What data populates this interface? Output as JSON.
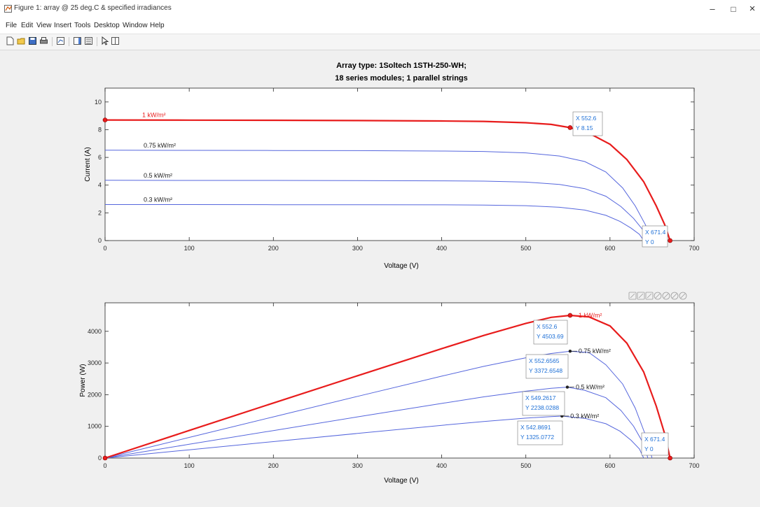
{
  "window": {
    "title": "Figure 1: array @ 25 deg.C & specified irradiances",
    "minimize_symbol": "–",
    "maximize_symbol": "□",
    "close_symbol": "×"
  },
  "menu": [
    "File",
    "Edit",
    "View",
    "Insert",
    "Tools",
    "Desktop",
    "Window",
    "Help"
  ],
  "toolbar": {
    "icons": [
      "new-figure-icon",
      "open-file-icon",
      "save-icon",
      "print-icon",
      "link-plot-icon",
      "insert-colorbar-icon",
      "insert-legend-icon",
      "pointer-icon",
      "plot-tools-icon"
    ]
  },
  "axes_toolbar": {
    "icons": [
      "brush-icon",
      "data-cursor-icon",
      "pan-icon",
      "rotate-icon",
      "zoom-in-icon",
      "zoom-out-icon",
      "restore-view-icon"
    ]
  },
  "colors": {
    "highlight": "#e81c1c",
    "curve": "#5566dd",
    "tip_text": "#1d6fd6",
    "background": "#f0f0f0"
  },
  "chart_data": [
    {
      "type": "line",
      "title": "Array type: 1Soltech 1STH-250-WH;",
      "subtitle": "18 series modules; 1 parallel strings",
      "xlabel": "Voltage (V)",
      "ylabel": "Current (A)",
      "xlim": [
        0,
        700
      ],
      "ylim": [
        0,
        11
      ],
      "xticks": [
        0,
        100,
        200,
        300,
        400,
        500,
        600,
        700
      ],
      "yticks": [
        0,
        2,
        4,
        6,
        8,
        10
      ],
      "grid": false,
      "series": [
        {
          "name": "1 kW/m²",
          "highlight": true,
          "isc": 8.7,
          "points": [
            [
              0,
              8.7
            ],
            [
              100,
              8.69
            ],
            [
              200,
              8.68
            ],
            [
              300,
              8.66
            ],
            [
              400,
              8.63
            ],
            [
              450,
              8.6
            ],
            [
              500,
              8.5
            ],
            [
              530,
              8.38
            ],
            [
              552.6,
              8.15
            ],
            [
              575,
              7.75
            ],
            [
              600,
              6.95
            ],
            [
              620,
              5.85
            ],
            [
              640,
              4.25
            ],
            [
              655,
              2.5
            ],
            [
              665,
              1.15
            ],
            [
              671.4,
              0
            ]
          ]
        },
        {
          "name": "0.75 kW/m²",
          "highlight": false,
          "isc": 6.52,
          "points": [
            [
              0,
              6.52
            ],
            [
              100,
              6.51
            ],
            [
              200,
              6.5
            ],
            [
              300,
              6.49
            ],
            [
              400,
              6.46
            ],
            [
              450,
              6.43
            ],
            [
              500,
              6.33
            ],
            [
              540,
              6.1
            ],
            [
              570,
              5.7
            ],
            [
              595,
              4.95
            ],
            [
              615,
              3.8
            ],
            [
              630,
              2.5
            ],
            [
              642,
              1.15
            ],
            [
              650,
              0
            ]
          ]
        },
        {
          "name": "0.5 kW/m²",
          "highlight": false,
          "isc": 4.35,
          "points": [
            [
              0,
              4.35
            ],
            [
              100,
              4.34
            ],
            [
              200,
              4.34
            ],
            [
              300,
              4.33
            ],
            [
              400,
              4.31
            ],
            [
              450,
              4.29
            ],
            [
              500,
              4.22
            ],
            [
              540,
              4.05
            ],
            [
              570,
              3.75
            ],
            [
              595,
              3.2
            ],
            [
              613,
              2.45
            ],
            [
              628,
              1.6
            ],
            [
              640,
              0.7
            ],
            [
              645,
              0
            ]
          ]
        },
        {
          "name": "0.3 kW/m²",
          "highlight": false,
          "isc": 2.6,
          "points": [
            [
              0,
              2.6
            ],
            [
              100,
              2.6
            ],
            [
              200,
              2.59
            ],
            [
              300,
              2.59
            ],
            [
              400,
              2.58
            ],
            [
              450,
              2.56
            ],
            [
              500,
              2.52
            ],
            [
              540,
              2.4
            ],
            [
              570,
              2.2
            ],
            [
              595,
              1.82
            ],
            [
              612,
              1.38
            ],
            [
              625,
              0.9
            ],
            [
              635,
              0.45
            ],
            [
              640,
              0
            ]
          ]
        }
      ],
      "markers": [
        [
          0,
          8.7
        ],
        [
          552.6,
          8.15
        ],
        [
          671.4,
          0
        ]
      ],
      "datatips": [
        {
          "x_label": "X 552.6",
          "y_label": "Y 8.15"
        },
        {
          "x_label": "X 671.4",
          "y_label": "Y 0"
        }
      ]
    },
    {
      "type": "line",
      "title": "",
      "xlabel": "Voltage (V)",
      "ylabel": "Power (W)",
      "xlim": [
        0,
        700
      ],
      "ylim": [
        0,
        4900
      ],
      "xticks": [
        0,
        100,
        200,
        300,
        400,
        500,
        600,
        700
      ],
      "yticks": [
        0,
        1000,
        2000,
        3000,
        4000
      ],
      "grid": false,
      "series": [
        {
          "name": "1 kW/m²",
          "highlight": true,
          "points": [
            [
              0,
              0
            ],
            [
              100,
              869
            ],
            [
              200,
              1736
            ],
            [
              300,
              2598
            ],
            [
              400,
              3452
            ],
            [
              450,
              3870
            ],
            [
              500,
              4250
            ],
            [
              530,
              4441
            ],
            [
              552.6,
              4503.69
            ],
            [
              575,
              4456
            ],
            [
              600,
              4170
            ],
            [
              620,
              3627
            ],
            [
              640,
              2720
            ],
            [
              655,
              1638
            ],
            [
              665,
              765
            ],
            [
              671.4,
              0
            ]
          ]
        },
        {
          "name": "0.75 kW/m²",
          "highlight": false,
          "points": [
            [
              0,
              0
            ],
            [
              100,
              651
            ],
            [
              200,
              1300
            ],
            [
              300,
              1947
            ],
            [
              400,
              2584
            ],
            [
              450,
              2894
            ],
            [
              500,
              3165
            ],
            [
              530,
              3300
            ],
            [
              552.6,
              3372.6
            ],
            [
              575,
              3330
            ],
            [
              595,
              2945
            ],
            [
              615,
              2337
            ],
            [
              630,
              1575
            ],
            [
              642,
              738
            ],
            [
              650,
              0
            ]
          ]
        },
        {
          "name": "0.5 kW/m²",
          "highlight": false,
          "points": [
            [
              0,
              0
            ],
            [
              100,
              434
            ],
            [
              200,
              868
            ],
            [
              300,
              1299
            ],
            [
              400,
              1724
            ],
            [
              450,
              1931
            ],
            [
              500,
              2110
            ],
            [
              530,
              2200
            ],
            [
              549.3,
              2238.03
            ],
            [
              570,
              2138
            ],
            [
              595,
              1904
            ],
            [
              613,
              1502
            ],
            [
              628,
              1005
            ],
            [
              640,
              448
            ],
            [
              645,
              0
            ]
          ]
        },
        {
          "name": "0.3 kW/m²",
          "highlight": false,
          "points": [
            [
              0,
              0
            ],
            [
              100,
              260
            ],
            [
              200,
              518
            ],
            [
              300,
              777
            ],
            [
              400,
              1032
            ],
            [
              450,
              1152
            ],
            [
              500,
              1260
            ],
            [
              530,
              1308
            ],
            [
              542.9,
              1325.08
            ],
            [
              570,
              1254
            ],
            [
              595,
              1083
            ],
            [
              612,
              845
            ],
            [
              625,
              563
            ],
            [
              635,
              286
            ],
            [
              640,
              0
            ]
          ]
        }
      ],
      "markers": [
        [
          0,
          0
        ],
        [
          552.6,
          4503.69
        ],
        [
          671.4,
          0
        ]
      ],
      "mpp_markers": [
        [
          552.6,
          3372.6
        ],
        [
          549.3,
          2238.03
        ],
        [
          542.9,
          1325.08
        ]
      ],
      "datatips": [
        {
          "x_label": "X 552.6",
          "y_label": "Y 4503.69"
        },
        {
          "x_label": "X 552.6565",
          "y_label": "Y 3372.6548"
        },
        {
          "x_label": "X 549.2617",
          "y_label": "Y 2238.0288"
        },
        {
          "x_label": "X 542.8691",
          "y_label": "Y 1325.0772"
        },
        {
          "x_label": "X 671.4",
          "y_label": "Y 0"
        }
      ]
    }
  ]
}
